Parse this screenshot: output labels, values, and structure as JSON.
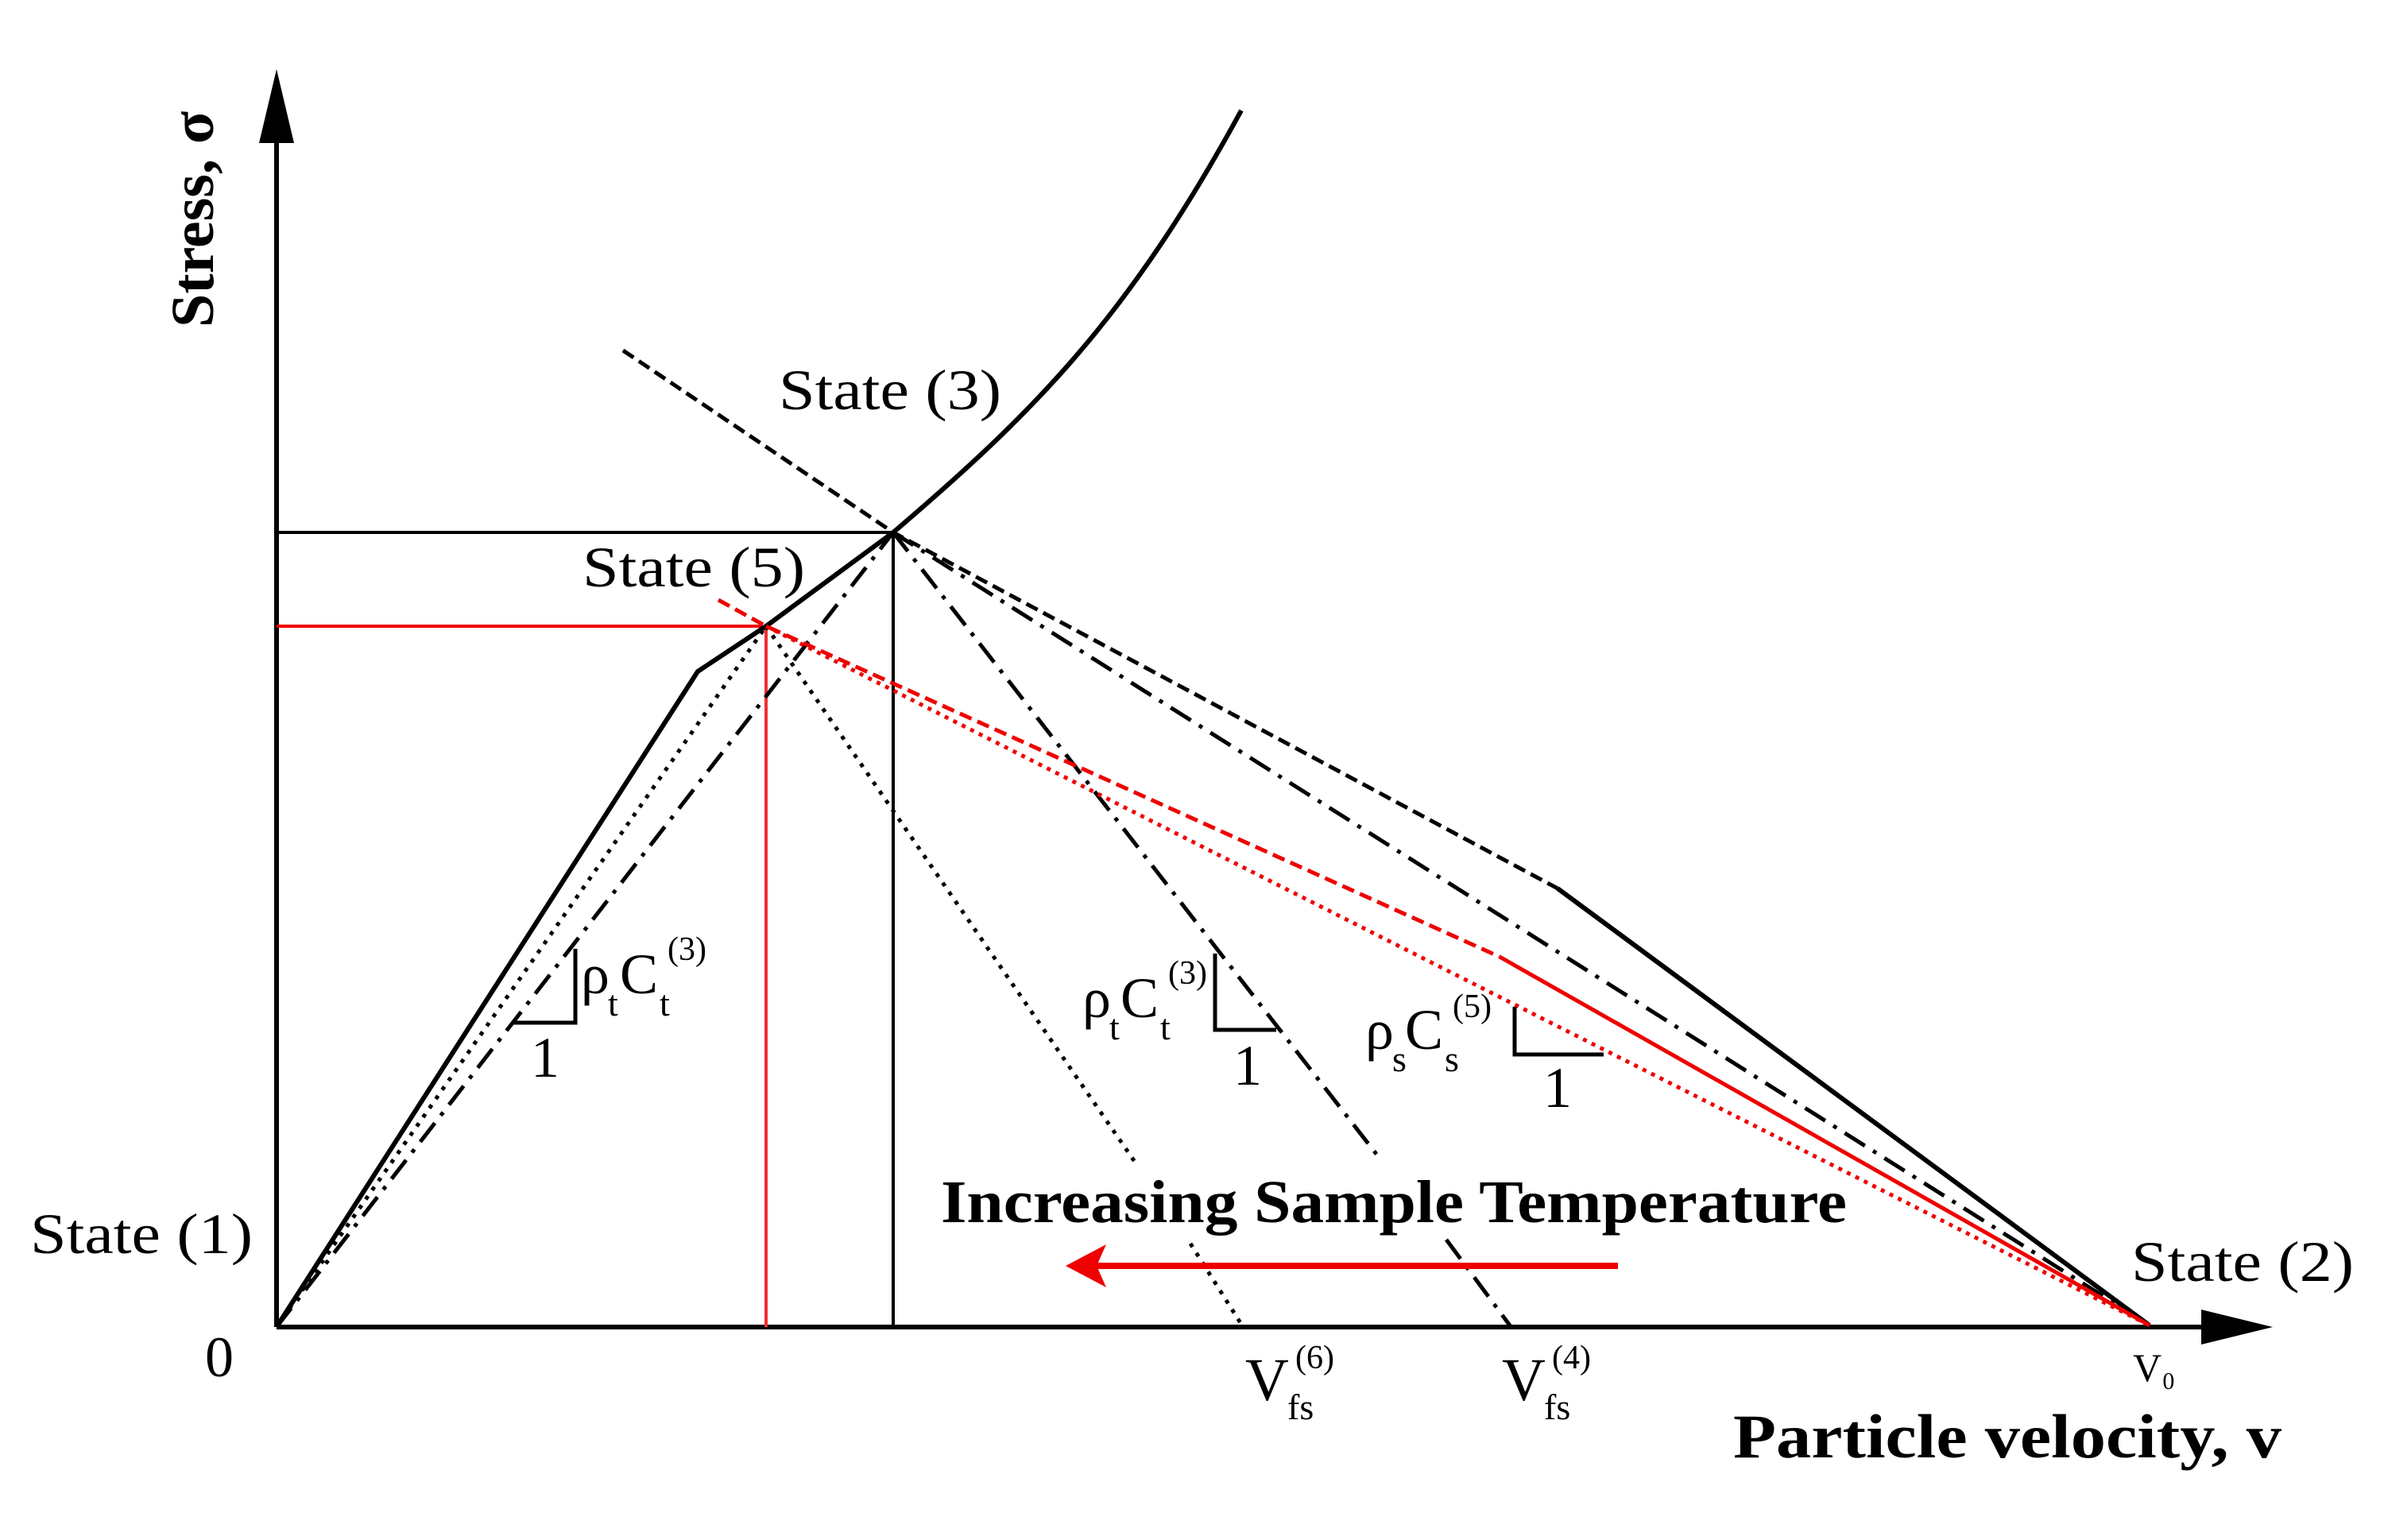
{
  "axes": {
    "y_label": "Stress, σ",
    "x_label": "Particle velocity, v",
    "origin_label": "0"
  },
  "states": {
    "s1": "State (1)",
    "s2": "State (2)",
    "s3": "State (3)",
    "s5": "State (5)"
  },
  "ticks": {
    "vfs6_main": "V",
    "vfs6_sub": "fs",
    "vfs6_sup": "(6)",
    "vfs4_main": "V",
    "vfs4_sub": "fs",
    "vfs4_sup": "(4)",
    "v0": "V₀"
  },
  "slopes": {
    "left": {
      "rho": "ρ",
      "rho_sub": "t",
      "c": "C",
      "c_sub": "t",
      "sup": "(3)",
      "one": "1"
    },
    "middle": {
      "rho": "ρ",
      "rho_sub": "t",
      "c": "C",
      "c_sub": "t",
      "sup": "(3)",
      "one": "1"
    },
    "right": {
      "rho": "ρ",
      "rho_sub": "s",
      "c": "C",
      "c_sub": "s",
      "sup": "(5)",
      "one": "1"
    }
  },
  "annotation": "Increasing Sample Temperature",
  "colors": {
    "black": "#000000",
    "red": "#ee0000"
  }
}
